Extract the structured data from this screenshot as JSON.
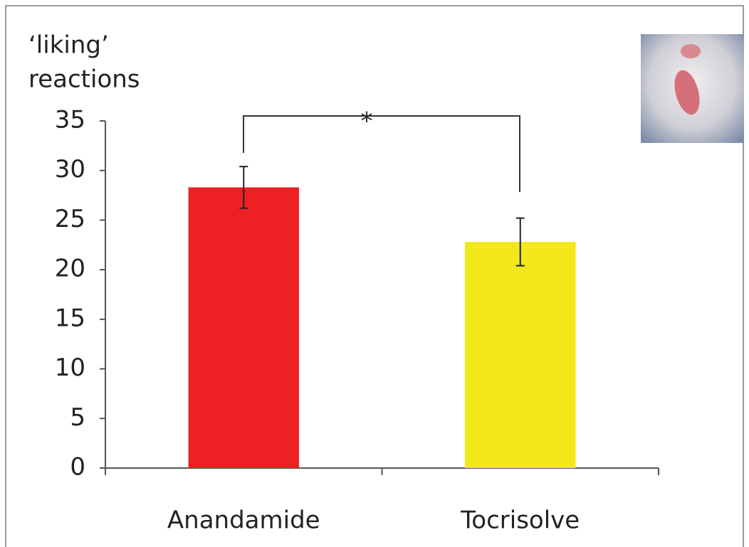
{
  "chart_data": {
    "type": "bar",
    "ylabel": [
      "‘liking’",
      "reactions"
    ],
    "categories": [
      "Anandamide",
      "Tocrisolve"
    ],
    "values": [
      28.3,
      22.8
    ],
    "errors": [
      2.1,
      2.4
    ],
    "colors": [
      "#ed2024",
      "#f2e81a"
    ],
    "ylim": [
      0,
      35
    ],
    "yticks": [
      0,
      5,
      10,
      15,
      20,
      25,
      30,
      35
    ],
    "annotation": "*"
  }
}
